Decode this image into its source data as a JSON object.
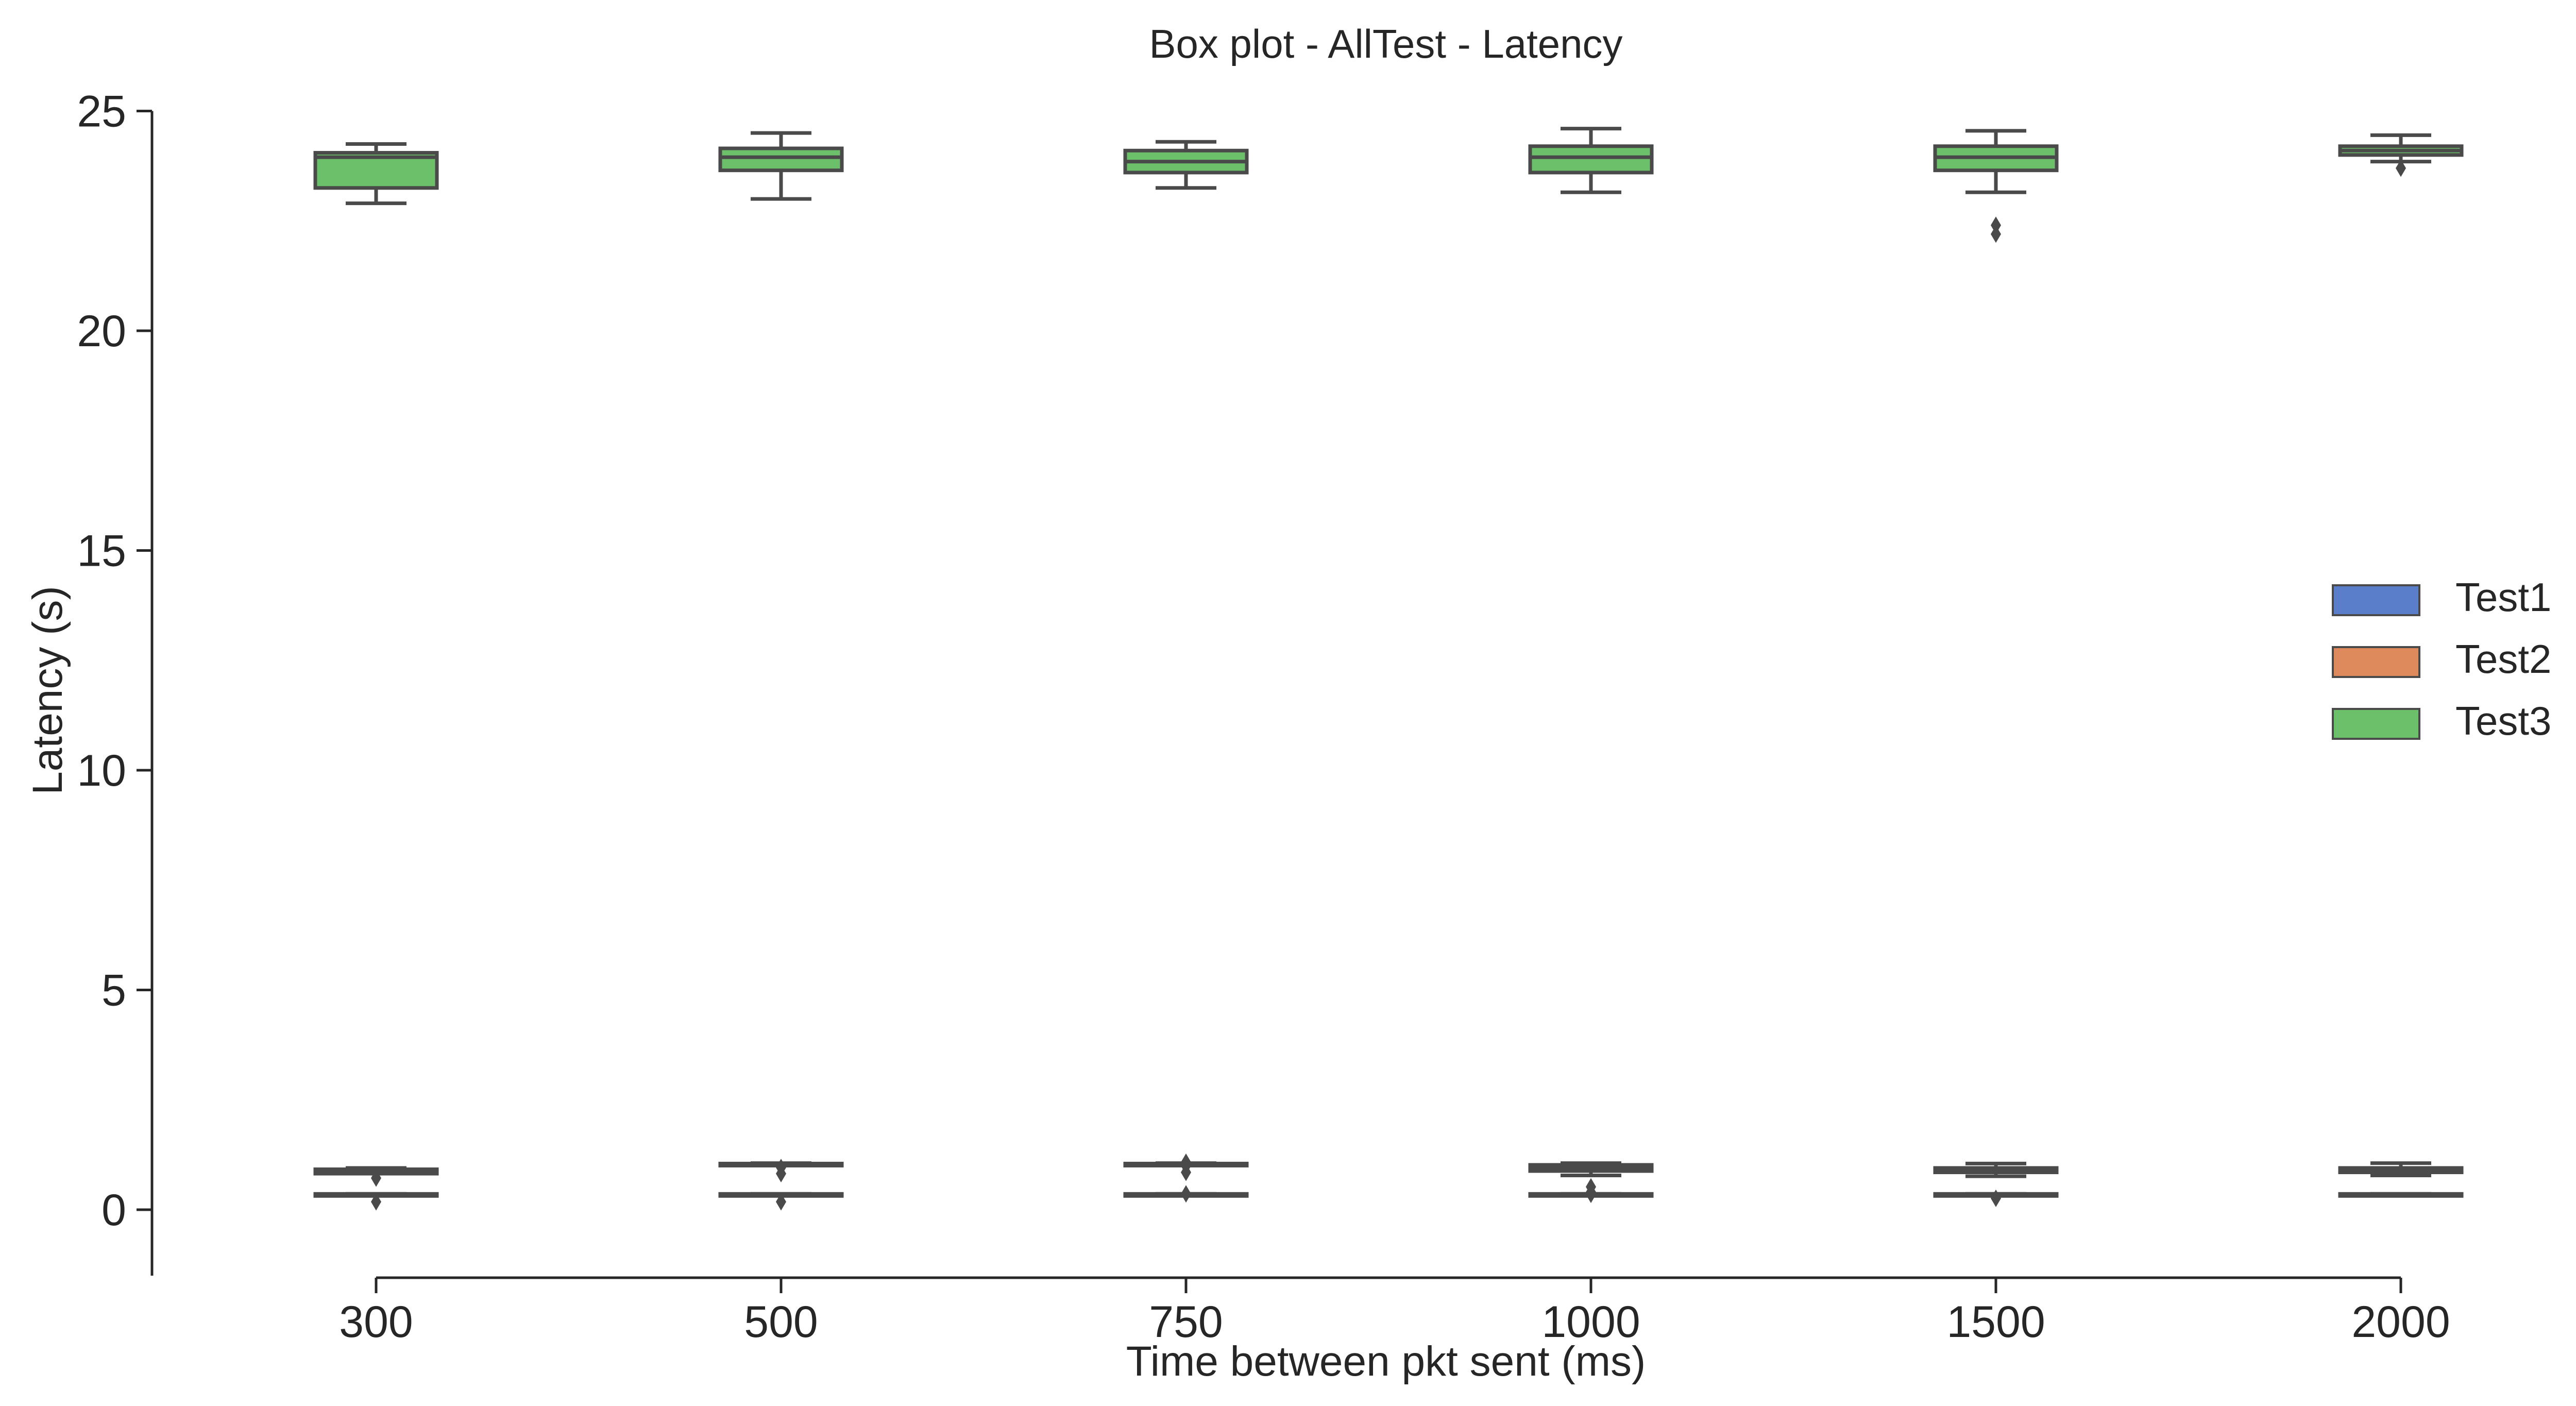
{
  "chart_data": {
    "type": "box",
    "title": "Box plot - AllTest - Latency",
    "xlabel": "Time between pkt sent (ms)",
    "ylabel": "Latency (s)",
    "categories": [
      "300",
      "500",
      "750",
      "1000",
      "1500",
      "2000"
    ],
    "ylim": [
      -1.5,
      25
    ],
    "yticks": [
      0,
      5,
      10,
      15,
      20,
      25
    ],
    "legend_position": "center-right",
    "colors": {
      "Test1": "#5a7ec9",
      "Test2": "#df8a5c",
      "Test3": "#6cc06a",
      "edge": "#4a4a4a"
    },
    "series": [
      {
        "name": "Test1",
        "boxes": [
          {
            "whisker_low": 0.34,
            "q1": 0.34,
            "median": 0.35,
            "q3": 0.36,
            "whisker_high": 0.36,
            "outliers": [
              0.18
            ]
          },
          {
            "whisker_low": 0.34,
            "q1": 0.34,
            "median": 0.35,
            "q3": 0.36,
            "whisker_high": 0.36,
            "outliers": [
              0.18
            ]
          },
          {
            "whisker_low": 0.34,
            "q1": 0.34,
            "median": 0.35,
            "q3": 0.36,
            "whisker_high": 0.36,
            "outliers": [
              0.36
            ]
          },
          {
            "whisker_low": 0.34,
            "q1": 0.34,
            "median": 0.35,
            "q3": 0.36,
            "whisker_high": 0.36,
            "outliers": [
              0.35
            ]
          },
          {
            "whisker_low": 0.34,
            "q1": 0.34,
            "median": 0.35,
            "q3": 0.36,
            "whisker_high": 0.36,
            "outliers": [
              0.26
            ]
          },
          {
            "whisker_low": 0.34,
            "q1": 0.34,
            "median": 0.35,
            "q3": 0.36,
            "whisker_high": 0.36,
            "outliers": []
          }
        ]
      },
      {
        "name": "Test2",
        "boxes": [
          {
            "whisker_low": 0.82,
            "q1": 0.82,
            "median": 0.88,
            "q3": 0.92,
            "whisker_high": 0.95,
            "outliers": [
              0.72
            ]
          },
          {
            "whisker_low": 1.02,
            "q1": 1.03,
            "median": 1.04,
            "q3": 1.05,
            "whisker_high": 1.06,
            "outliers": [
              0.82,
              0.96
            ]
          },
          {
            "whisker_low": 1.02,
            "q1": 1.03,
            "median": 1.04,
            "q3": 1.05,
            "whisker_high": 1.06,
            "outliers": [
              0.85,
              1.0,
              1.08
            ]
          },
          {
            "whisker_low": 0.78,
            "q1": 0.88,
            "median": 0.96,
            "q3": 1.02,
            "whisker_high": 1.06,
            "outliers": [
              0.4,
              0.52
            ]
          },
          {
            "whisker_low": 0.76,
            "q1": 0.85,
            "median": 0.9,
            "q3": 0.95,
            "whisker_high": 1.05,
            "outliers": []
          },
          {
            "whisker_low": 0.78,
            "q1": 0.85,
            "median": 0.9,
            "q3": 0.95,
            "whisker_high": 1.06,
            "outliers": []
          }
        ]
      },
      {
        "name": "Test3",
        "boxes": [
          {
            "whisker_low": 22.9,
            "q1": 23.25,
            "median": 23.95,
            "q3": 24.05,
            "whisker_high": 24.25,
            "outliers": []
          },
          {
            "whisker_low": 23.0,
            "q1": 23.65,
            "median": 23.95,
            "q3": 24.15,
            "whisker_high": 24.5,
            "outliers": []
          },
          {
            "whisker_low": 23.25,
            "q1": 23.6,
            "median": 23.85,
            "q3": 24.1,
            "whisker_high": 24.3,
            "outliers": []
          },
          {
            "whisker_low": 23.15,
            "q1": 23.6,
            "median": 23.95,
            "q3": 24.2,
            "whisker_high": 24.6,
            "outliers": []
          },
          {
            "whisker_low": 23.15,
            "q1": 23.65,
            "median": 23.95,
            "q3": 24.2,
            "whisker_high": 24.55,
            "outliers": [
              22.2,
              22.4
            ]
          },
          {
            "whisker_low": 23.85,
            "q1": 24.0,
            "median": 24.1,
            "q3": 24.2,
            "whisker_high": 24.45,
            "outliers": [
              23.7
            ]
          }
        ]
      }
    ]
  }
}
